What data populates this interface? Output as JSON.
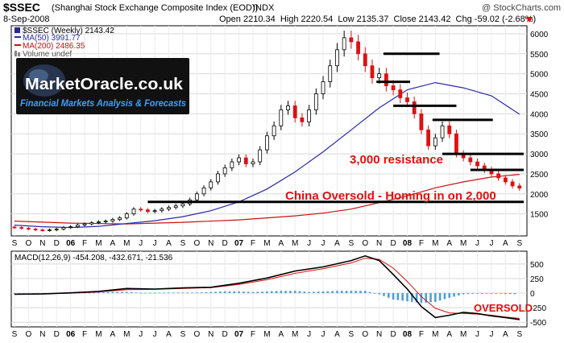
{
  "header": {
    "symbol": "$SSEC",
    "name": "(Shanghai Stock Exchange Composite Index (EOD))",
    "exchange": "INDX",
    "watermark": "@ StockCharts.com",
    "date": "8-Sep-2008",
    "ohlc": "Open 2210.34  High 2220.54  Low 2135.37  Close 2143.42  Chg -59.02 (-2.68%)",
    "chg_icon": "down-triangle-icon"
  },
  "legend": {
    "items": [
      {
        "label": "$SSEC (Weekly) 2143.42",
        "color": "#2a2a8a",
        "icon": "square-swatch-icon"
      },
      {
        "label": "MA(50) 3991.77",
        "color": "#2a2ab0",
        "icon": "line-swatch-icon"
      },
      {
        "label": "MA(200) 2486.35",
        "color": "#cc1111",
        "icon": "line-swatch-icon"
      },
      {
        "label": "Volume undef",
        "color": "#888888",
        "icon": "bar-swatch-icon"
      }
    ]
  },
  "logo": {
    "title": "MarketOracle.co.uk",
    "subtitle": "Financial Markets Analysis & Forecasts"
  },
  "annotations": {
    "resistance": "3,000 resistance",
    "oversold_main": "China Oversold - Homing in on 2,000",
    "oversold_macd": "OVERSOLD"
  },
  "colors": {
    "price_up": "#ffffff",
    "price_down": "#dd1111",
    "ma50": "#2a2ab0",
    "ma200": "#cc1111",
    "macd": "#000000",
    "signal": "#dd1111",
    "hist": "#4f9fd8",
    "annotation": "#e01010"
  },
  "chart_data": [
    {
      "type": "candlestick",
      "title": "$SSEC (Shanghai Stock Exchange Composite Index (EOD))",
      "x_tick_labels": [
        "S",
        "O",
        "N",
        "D",
        "06",
        "F",
        "M",
        "A",
        "M",
        "J",
        "J",
        "A",
        "S",
        "O",
        "N",
        "D",
        "07",
        "F",
        "M",
        "A",
        "M",
        "J",
        "J",
        "A",
        "S",
        "O",
        "N",
        "D",
        "08",
        "F",
        "M",
        "A",
        "M",
        "J",
        "J",
        "A",
        "S"
      ],
      "ylim": [
        950,
        6200
      ],
      "y_ticks": [
        1500,
        2000,
        2500,
        3000,
        3500,
        4000,
        4500,
        5000,
        5500,
        6000
      ],
      "x_range": [
        0,
        36.3
      ],
      "series": [
        {
          "name": "$SSEC (Weekly) 2143.42",
          "x": [
            0,
            0.5,
            1,
            1.5,
            2,
            2.5,
            3,
            3.5,
            4,
            4.5,
            5,
            5.5,
            6,
            6.5,
            7,
            7.5,
            8,
            8.5,
            9,
            9.5,
            10,
            10.5,
            11,
            11.5,
            12,
            12.5,
            13,
            13.5,
            14,
            14.5,
            15,
            15.5,
            16,
            16.5,
            17,
            17.5,
            18,
            18.5,
            19,
            19.5,
            20,
            20.5,
            21,
            21.5,
            22,
            22.5,
            23,
            23.5,
            24,
            24.5,
            25,
            25.5,
            26,
            26.5,
            27,
            27.5,
            28,
            28.5,
            29,
            29.5,
            30,
            30.5,
            31,
            31.5,
            32,
            32.5,
            33,
            33.5,
            34,
            34.5,
            35,
            35.5,
            36
          ],
          "close": [
            1160,
            1140,
            1120,
            1100,
            1090,
            1100,
            1120,
            1160,
            1180,
            1220,
            1250,
            1280,
            1300,
            1320,
            1360,
            1400,
            1500,
            1620,
            1600,
            1560,
            1580,
            1620,
            1660,
            1700,
            1750,
            1850,
            2000,
            2150,
            2300,
            2500,
            2650,
            2800,
            2900,
            2750,
            2800,
            3100,
            3450,
            3700,
            4100,
            4200,
            3900,
            3800,
            4100,
            4500,
            4800,
            5200,
            5600,
            5900,
            5800,
            5500,
            5200,
            4900,
            5000,
            4700,
            4600,
            4400,
            4300,
            4000,
            3600,
            3200,
            3400,
            3700,
            3500,
            3000,
            2900,
            2800,
            2700,
            2600,
            2500,
            2400,
            2300,
            2200,
            2143
          ]
        },
        {
          "name": "MA(50) 3991.77",
          "x": [
            0,
            2,
            4,
            6,
            8,
            10,
            12,
            14,
            16,
            18,
            20,
            22,
            24,
            26,
            28,
            30,
            32,
            34,
            36
          ],
          "values": [
            1220,
            1180,
            1160,
            1190,
            1260,
            1330,
            1430,
            1580,
            1800,
            2120,
            2550,
            3050,
            3600,
            4150,
            4600,
            4780,
            4650,
            4450,
            3990
          ]
        },
        {
          "name": "MA(200) 2486.35",
          "x": [
            0,
            4,
            8,
            12,
            16,
            20,
            22,
            24,
            26,
            28,
            30,
            32,
            34,
            36
          ],
          "values": [
            1320,
            1270,
            1250,
            1290,
            1350,
            1450,
            1520,
            1620,
            1780,
            1950,
            2150,
            2300,
            2420,
            2486
          ]
        }
      ],
      "levels": [
        {
          "y": 5500,
          "x": [
            26.3,
            30.3
          ]
        },
        {
          "y": 4800,
          "x": [
            25.8,
            28.2
          ]
        },
        {
          "y": 4200,
          "x": [
            27.0,
            31.5
          ]
        },
        {
          "y": 3850,
          "x": [
            29.8,
            34.1
          ]
        },
        {
          "y": 3000,
          "x": [
            30.5,
            36.3
          ]
        },
        {
          "y": 2600,
          "x": [
            32.5,
            36.3
          ]
        },
        {
          "y": 1800,
          "x": [
            9.5,
            36.3
          ]
        }
      ]
    },
    {
      "type": "line",
      "title": "MACD(12,26,9)  -454.208, -432.671, -21.536",
      "x_tick_labels": [
        "S",
        "O",
        "N",
        "D",
        "06",
        "F",
        "M",
        "A",
        "M",
        "J",
        "J",
        "A",
        "S",
        "O",
        "N",
        "D",
        "07",
        "F",
        "M",
        "A",
        "M",
        "J",
        "J",
        "A",
        "S",
        "O",
        "N",
        "D",
        "08",
        "F",
        "M",
        "A",
        "M",
        "J",
        "J",
        "A",
        "S"
      ],
      "ylim": [
        -580,
        720
      ],
      "y_ticks": [
        -500,
        -250,
        0,
        250,
        500
      ],
      "series": [
        {
          "name": "MACD",
          "x": [
            0,
            2,
            4,
            6,
            8,
            10,
            12,
            14,
            16,
            18,
            20,
            22,
            24,
            25,
            26,
            27,
            28,
            29,
            30,
            31,
            32,
            33,
            34,
            35,
            36
          ],
          "values": [
            -20,
            -15,
            5,
            30,
            80,
            70,
            90,
            100,
            170,
            260,
            380,
            450,
            560,
            640,
            560,
            320,
            70,
            -230,
            -420,
            -380,
            -330,
            -350,
            -390,
            -420,
            -454
          ]
        },
        {
          "name": "Signal",
          "x": [
            0,
            2,
            4,
            6,
            8,
            10,
            12,
            14,
            16,
            18,
            20,
            22,
            24,
            25,
            26,
            27,
            28,
            29,
            30,
            31,
            32,
            33,
            34,
            35,
            36
          ],
          "values": [
            -15,
            -12,
            0,
            20,
            60,
            65,
            80,
            95,
            150,
            230,
            340,
            420,
            520,
            600,
            580,
            430,
            200,
            -60,
            -260,
            -340,
            -350,
            -360,
            -380,
            -410,
            -433
          ]
        }
      ],
      "histogram": {
        "x": [
          0,
          1,
          2,
          3,
          4,
          5,
          6,
          7,
          8,
          9,
          10,
          11,
          12,
          13,
          14,
          15,
          16,
          17,
          18,
          19,
          20,
          21,
          22,
          23,
          24,
          25,
          26,
          27,
          28,
          29,
          30,
          31,
          32,
          33,
          34,
          35,
          36
        ],
        "values": [
          -10,
          -5,
          -3,
          5,
          10,
          8,
          10,
          20,
          20,
          5,
          5,
          10,
          10,
          10,
          20,
          30,
          30,
          20,
          30,
          40,
          40,
          20,
          30,
          40,
          40,
          40,
          -20,
          -110,
          -140,
          -170,
          -150,
          -80,
          -20,
          -10,
          -5,
          -15,
          -21
        ]
      }
    }
  ]
}
